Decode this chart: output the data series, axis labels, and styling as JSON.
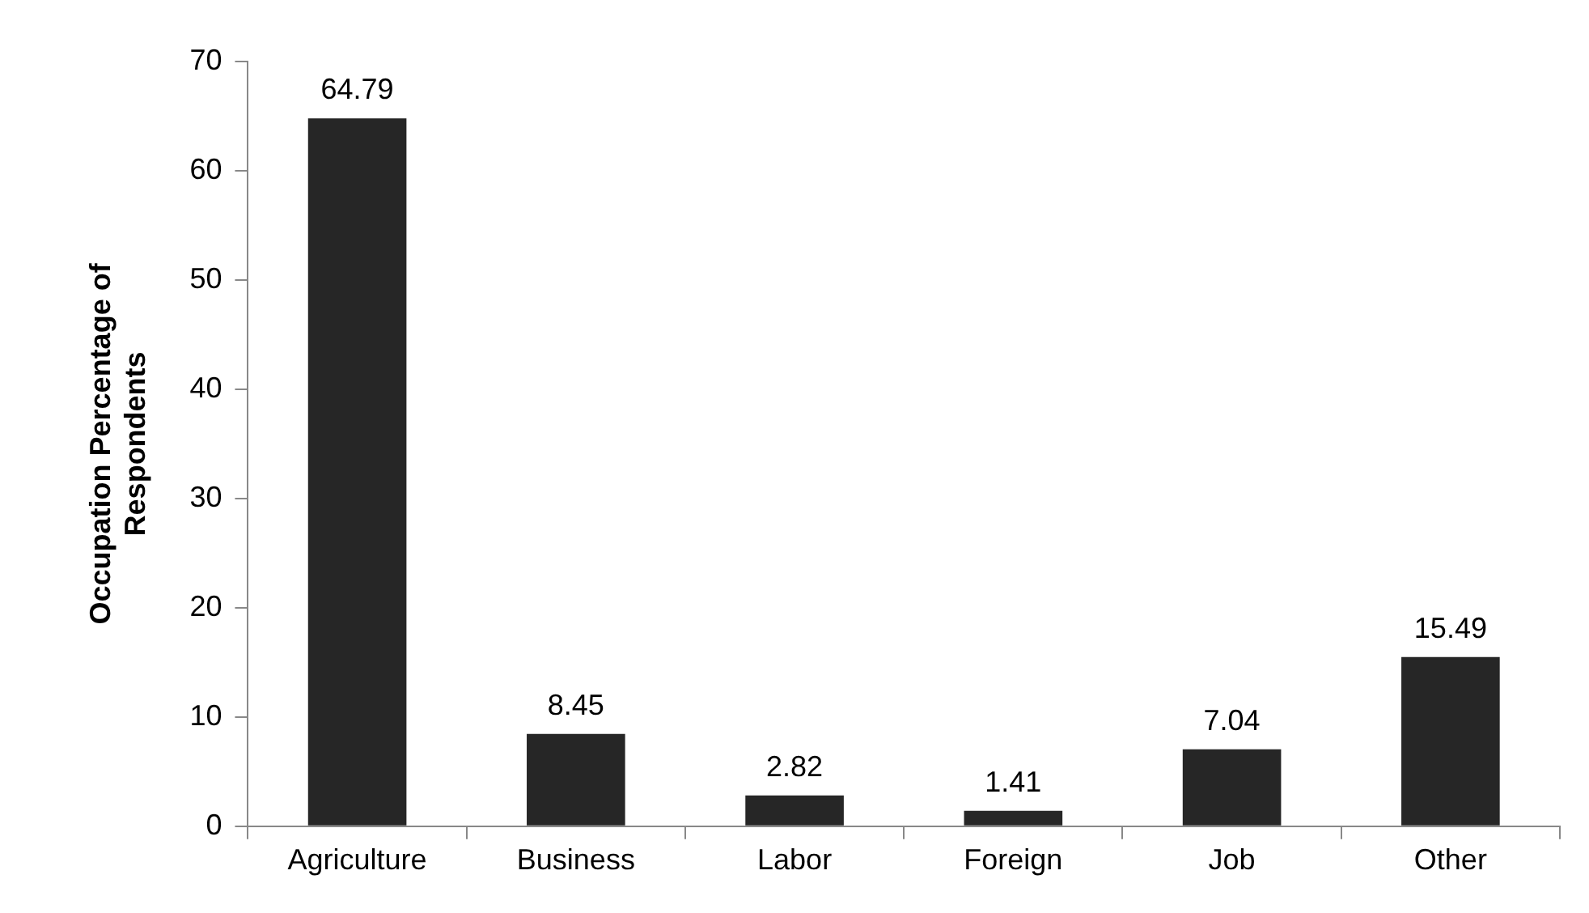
{
  "chart_data": {
    "type": "bar",
    "ylabel": [
      "Occupation Percentage of",
      "Respondents"
    ],
    "categories": [
      "Agriculture",
      "Business",
      "Labor",
      "Foreign",
      "Job",
      "Other"
    ],
    "values": [
      64.79,
      8.45,
      2.82,
      1.41,
      7.04,
      15.49
    ],
    "color": "#262626",
    "ylim": [
      0,
      70
    ],
    "yticks": [
      0,
      10,
      20,
      30,
      40,
      50,
      60,
      70
    ],
    "grid": false,
    "legend": false,
    "data_labels": true
  }
}
